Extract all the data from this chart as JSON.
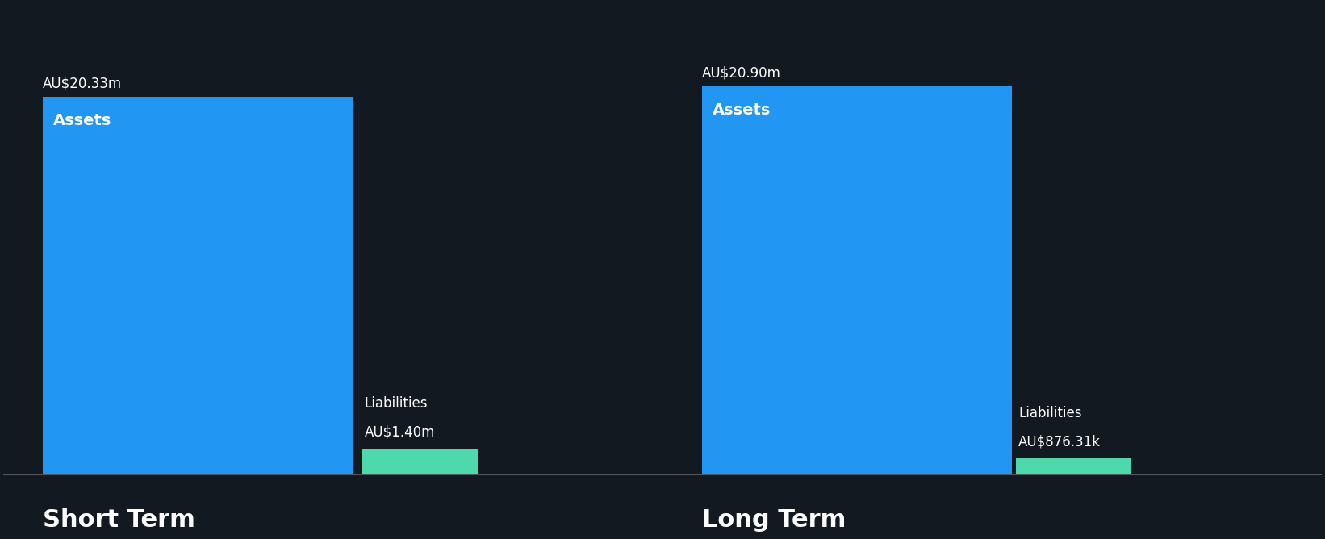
{
  "background_color": "#131921",
  "short_term": {
    "assets_value": 20.33,
    "liabilities_value": 1.4,
    "assets_label": "AU$20.33m",
    "liabilities_label": "AU$1.40m",
    "section_label": "Short Term"
  },
  "long_term": {
    "assets_value": 20.9,
    "liabilities_value": 0.87631,
    "assets_label": "AU$20.90m",
    "liabilities_label": "AU$876.31k",
    "section_label": "Long Term"
  },
  "assets_color": "#2196F3",
  "liabilities_color": "#4DD9AC",
  "text_color": "#ffffff",
  "bar_label_fontsize": 12,
  "inner_label_fontsize": 14,
  "section_label_fontsize": 22,
  "liab_label_fontsize": 12
}
